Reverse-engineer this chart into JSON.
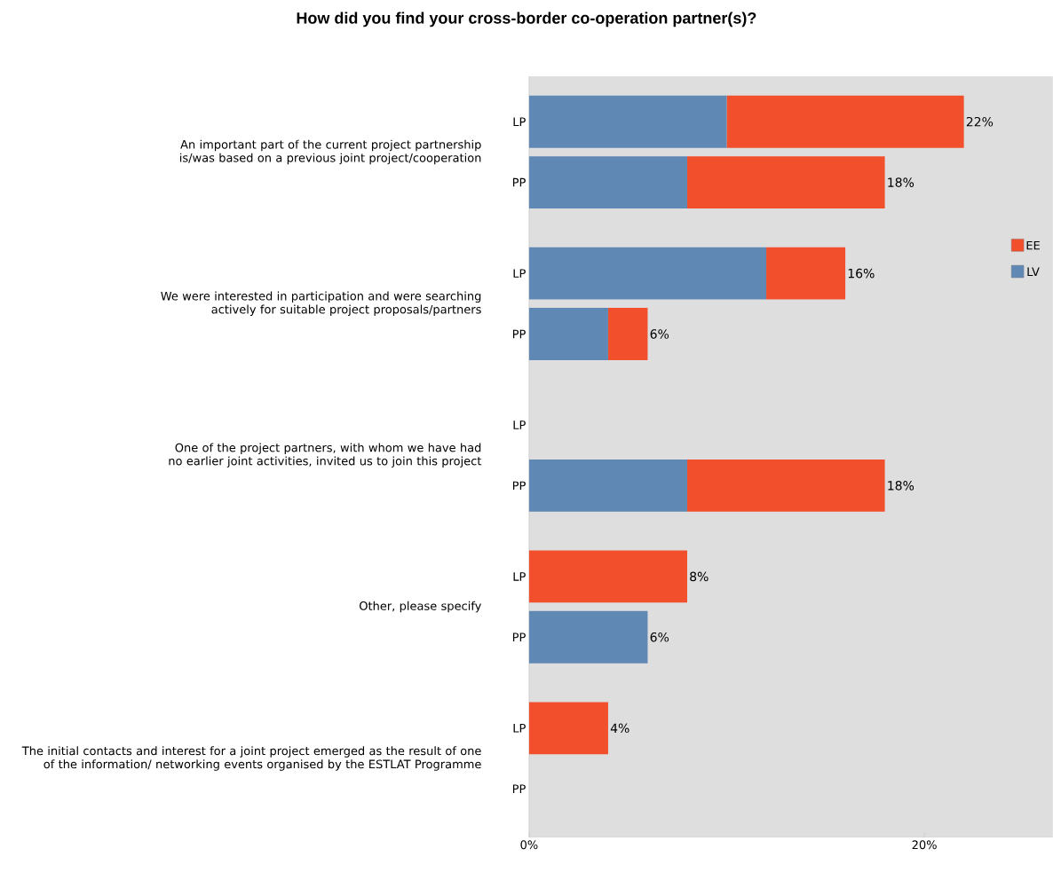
{
  "chart_data": {
    "type": "bar",
    "orientation": "horizontal",
    "stacked": true,
    "title": "How did you find your cross-border co-operation partner(s)?",
    "categories": [
      "LP",
      "PP",
      "LP",
      "PP",
      "LP",
      "PP",
      "LP",
      "PP",
      "LP",
      "PP"
    ],
    "series": [
      {
        "name": "LV",
        "color": "#6088b5",
        "values": [
          10,
          8,
          12,
          4,
          null,
          8,
          null,
          6,
          null,
          null
        ]
      },
      {
        "name": "EE",
        "color": "#f24f2c",
        "values": [
          12,
          10,
          4,
          2,
          null,
          10,
          8,
          null,
          4,
          null
        ]
      }
    ],
    "totals": [
      "22%",
      "18%",
      "16%",
      "6%",
      null,
      "18%",
      "8%",
      "6%",
      "4%",
      null
    ],
    "annotations": [
      "An important part of the current project partnership is/was based on a previous joint project/cooperation",
      "We were interested in participation and were searching actively for suitable project proposals/partners",
      "One of the project partners, with whom we have had no earlier joint activities, invited us to join this project",
      "Other, please specify",
      "The initial contacts and interest for a joint project emerged as the result of one of the information/ networking events organised by the ESTLAT Programme"
    ],
    "xlim": [
      0,
      26.5
    ],
    "xticks": [
      {
        "value": 0,
        "label": "0%"
      },
      {
        "value": 20,
        "label": "20%"
      }
    ],
    "legend": "right"
  }
}
